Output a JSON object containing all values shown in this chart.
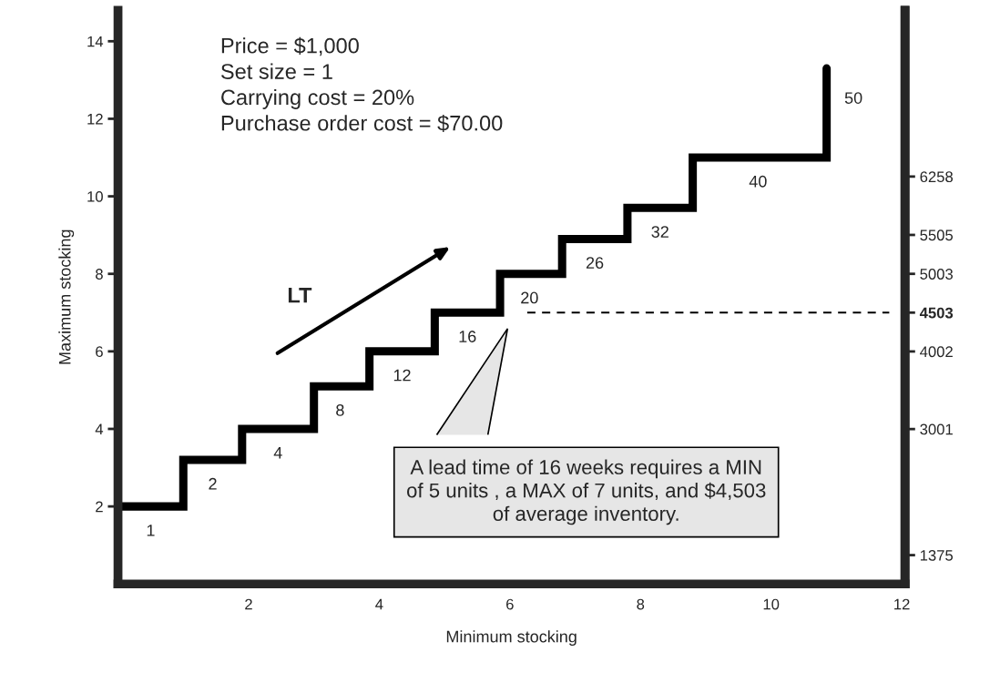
{
  "chart_data": {
    "type": "step",
    "xlabel": "Minimum stocking",
    "ylabel": "Maximum stocking",
    "x": [
      0,
      1,
      1.9,
      3,
      3.85,
      4.85,
      5.85,
      6.8,
      7.8,
      8.8,
      10.85
    ],
    "series": [
      {
        "color": "#000000",
        "values": [
          2,
          3.2,
          4,
          5.1,
          6,
          7,
          8,
          8.9,
          9.7,
          11,
          13.3
        ]
      }
    ],
    "xlim": [
      0,
      12.05
    ],
    "xticks": [
      2,
      4,
      6,
      8,
      10,
      12
    ],
    "ylim": [
      0,
      14.8
    ],
    "yticks": [
      2,
      4,
      6,
      8,
      10,
      12,
      14
    ],
    "y2lim": [
      1003,
      8403
    ],
    "y2ticks": [
      1375,
      3001,
      4002,
      4503,
      5003,
      5505,
      6258
    ],
    "ref_lines": [
      {
        "axis": "y",
        "value": 7,
        "color": "#000000",
        "line_style": "dashed"
      }
    ],
    "grid": false,
    "annotations": [
      "Price = $1,000",
      "Set size = 1",
      "Carrying cost = 20%",
      "Purchase order cost = $70.00",
      "LT",
      "A lead time of 16 weeks requires a MIN\nof 5 units , a MAX of 7 units, and $4,503\nof average inventory.",
      {
        "text": "1",
        "x": 0.5,
        "y": 2
      },
      {
        "text": "2",
        "x": 1.45,
        "y": 3.2
      },
      {
        "text": "4",
        "x": 2.45,
        "y": 4
      },
      {
        "text": "8",
        "x": 3.4,
        "y": 5.1
      },
      {
        "text": "12",
        "x": 4.35,
        "y": 6
      },
      {
        "text": "16",
        "x": 5.35,
        "y": 7
      },
      {
        "text": "20",
        "x": 6.3,
        "y": 8
      },
      {
        "text": "26",
        "x": 7.3,
        "y": 8.9
      },
      {
        "text": "32",
        "x": 8.3,
        "y": 9.7
      },
      {
        "text": "40",
        "x": 9.8,
        "y": 11
      },
      {
        "text": "50",
        "x": 10.85,
        "y": 12.5
      }
    ]
  }
}
